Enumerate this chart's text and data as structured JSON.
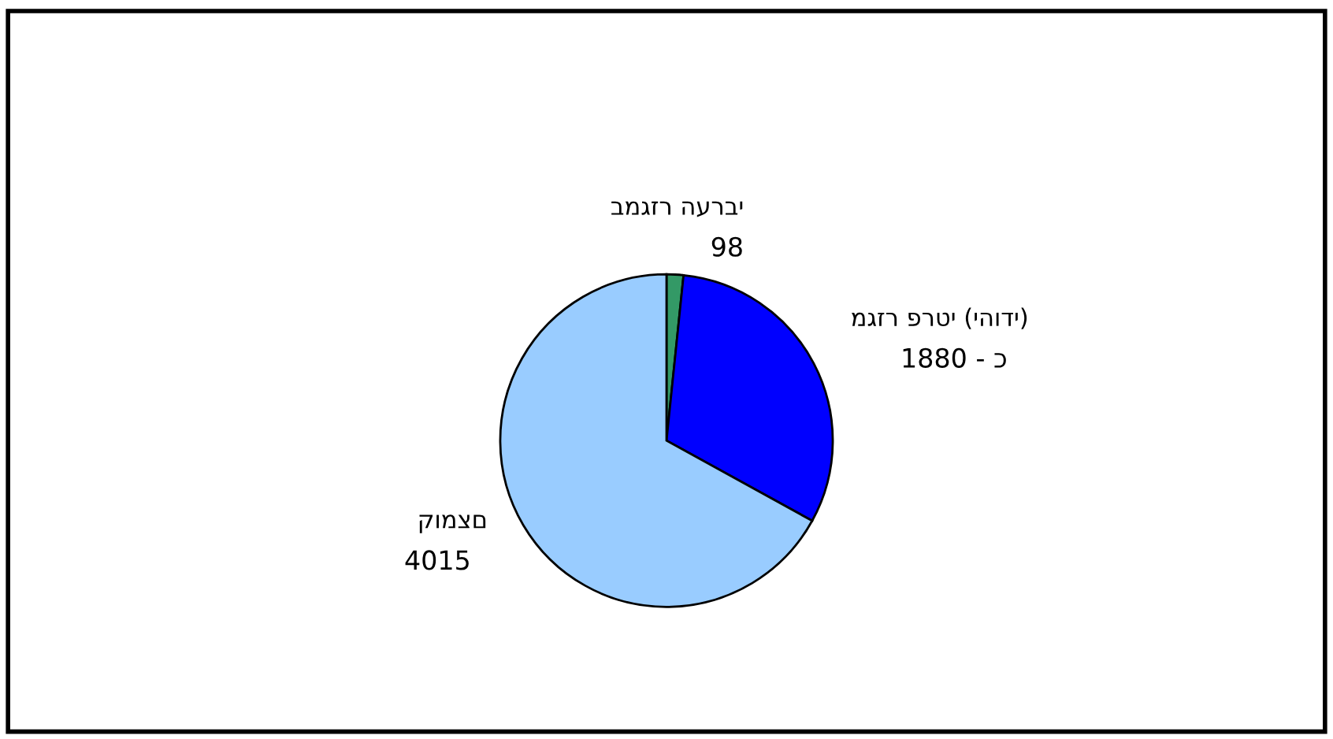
{
  "chart_data": {
    "type": "pie",
    "categories": [
      "במגזר הערבי",
      "מגזר פרטי (יהודי)",
      "קומצם"
    ],
    "values": [
      98,
      1880,
      4015
    ],
    "value_labels": [
      "98",
      "1880 - כ",
      "4015"
    ],
    "colors": [
      "#339966",
      "#0000ff",
      "#99ccff"
    ],
    "legend": false
  }
}
